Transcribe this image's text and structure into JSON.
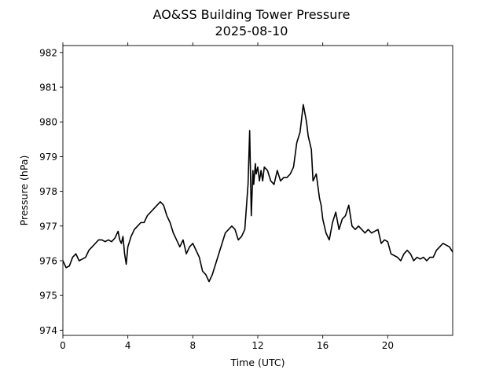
{
  "chart_data": {
    "type": "line",
    "title": "AO&SS Building Tower Pressure",
    "subtitle": "2025-08-10",
    "xlabel": "Time (UTC)",
    "ylabel": "Pressure (hPa)",
    "xlim": [
      0,
      24
    ],
    "ylim": [
      973.85,
      982.2
    ],
    "x_ticks": [
      0,
      4,
      8,
      12,
      16,
      20
    ],
    "y_ticks": [
      974,
      975,
      976,
      977,
      978,
      979,
      980,
      981,
      982
    ],
    "grid": false,
    "line_color": "#000000",
    "series": [
      {
        "x": [
          0.0,
          0.2,
          0.4,
          0.6,
          0.8,
          1.0,
          1.2,
          1.4,
          1.6,
          1.8,
          2.0,
          2.2,
          2.4,
          2.6,
          2.8,
          3.0,
          3.2,
          3.4,
          3.5,
          3.6,
          3.7,
          3.8,
          3.9,
          4.0,
          4.2,
          4.4,
          4.6,
          4.8,
          5.0,
          5.2,
          5.4,
          5.6,
          5.8,
          6.0,
          6.2,
          6.4,
          6.6,
          6.8,
          7.0,
          7.2,
          7.4,
          7.6,
          7.8,
          8.0,
          8.2,
          8.4,
          8.6,
          8.8,
          9.0,
          9.2,
          9.4,
          9.6,
          9.8,
          10.0,
          10.2,
          10.4,
          10.6,
          10.8,
          11.0,
          11.2,
          11.4,
          11.5,
          11.6,
          11.7,
          11.75,
          11.85,
          11.9,
          12.0,
          12.1,
          12.2,
          12.3,
          12.4,
          12.6,
          12.8,
          13.0,
          13.2,
          13.4,
          13.6,
          13.8,
          14.0,
          14.2,
          14.4,
          14.6,
          14.8,
          15.0,
          15.1,
          15.2,
          15.3,
          15.4,
          15.6,
          15.8,
          15.9,
          16.0,
          16.2,
          16.4,
          16.6,
          16.8,
          17.0,
          17.2,
          17.4,
          17.6,
          17.8,
          18.0,
          18.2,
          18.4,
          18.6,
          18.8,
          19.0,
          19.2,
          19.4,
          19.6,
          19.8,
          20.0,
          20.2,
          20.4,
          20.6,
          20.8,
          21.0,
          21.2,
          21.4,
          21.6,
          21.8,
          22.0,
          22.2,
          22.4,
          22.6,
          22.8,
          23.0,
          23.2,
          23.4,
          23.6,
          23.8,
          24.0
        ],
        "y": [
          976.0,
          975.8,
          975.85,
          976.1,
          976.2,
          976.0,
          976.05,
          976.1,
          976.3,
          976.4,
          976.5,
          976.6,
          976.6,
          976.55,
          976.6,
          976.55,
          976.65,
          976.85,
          976.6,
          976.5,
          976.7,
          976.2,
          975.9,
          976.4,
          976.7,
          976.9,
          977.0,
          977.1,
          977.1,
          977.3,
          977.4,
          977.5,
          977.6,
          977.7,
          977.6,
          977.3,
          977.1,
          976.8,
          976.6,
          976.4,
          976.6,
          976.2,
          976.4,
          976.5,
          976.3,
          976.1,
          975.7,
          975.6,
          975.4,
          975.6,
          975.9,
          976.2,
          976.5,
          976.8,
          976.9,
          977.0,
          976.9,
          976.6,
          976.7,
          976.9,
          978.2,
          979.75,
          977.3,
          978.6,
          978.2,
          978.8,
          978.5,
          978.7,
          978.3,
          978.6,
          978.3,
          978.7,
          978.6,
          978.3,
          978.2,
          978.6,
          978.3,
          978.4,
          978.4,
          978.5,
          978.7,
          979.4,
          979.7,
          980.5,
          980.0,
          979.6,
          979.4,
          979.2,
          978.3,
          978.5,
          977.8,
          977.6,
          977.2,
          976.8,
          976.6,
          977.1,
          977.4,
          976.9,
          977.2,
          977.3,
          977.6,
          977.0,
          976.9,
          977.0,
          976.9,
          976.8,
          976.9,
          976.8,
          976.85,
          976.9,
          976.5,
          976.6,
          976.55,
          976.2,
          976.15,
          976.1,
          976.0,
          976.2,
          976.3,
          976.2,
          976.0,
          976.1,
          976.05,
          976.1,
          976.0,
          976.1,
          976.1,
          976.3,
          976.4,
          976.5,
          976.45,
          976.4,
          976.25
        ]
      }
    ]
  }
}
